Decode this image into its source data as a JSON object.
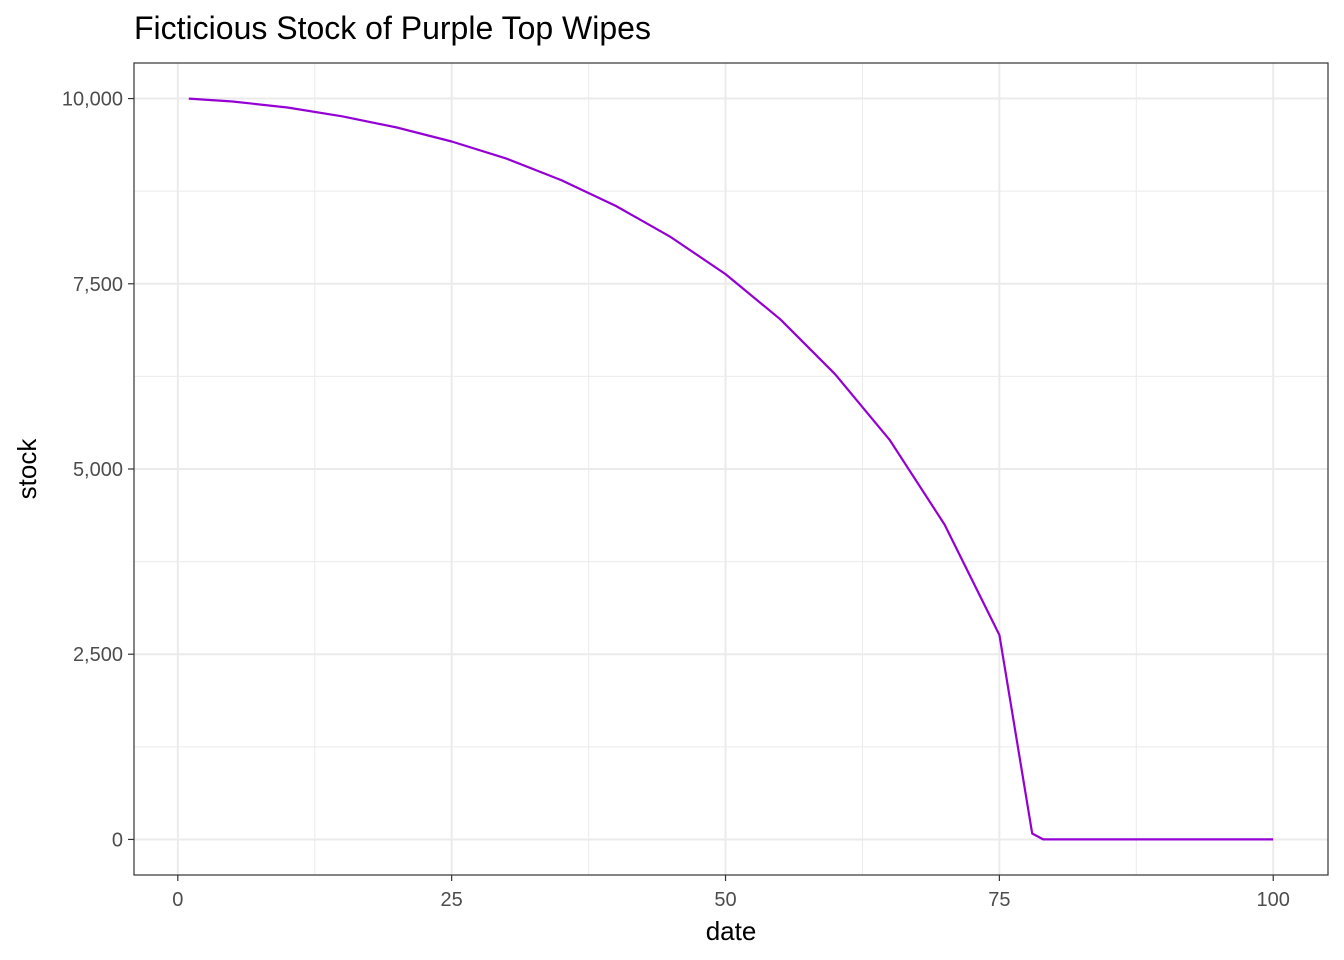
{
  "chart_data": {
    "type": "line",
    "title": "Ficticious Stock of Purple Top Wipes",
    "xlabel": "date",
    "ylabel": "stock",
    "xlim": [
      -4,
      105
    ],
    "ylim": [
      -480,
      10480
    ],
    "x_ticks": [
      0,
      25,
      50,
      75,
      100
    ],
    "x_tick_labels": [
      "0",
      "25",
      "50",
      "75",
      "100"
    ],
    "x_minor_ticks": [
      12.5,
      37.5,
      62.5,
      87.5
    ],
    "y_ticks": [
      0,
      2500,
      5000,
      7500,
      10000
    ],
    "y_tick_labels": [
      "0",
      "2,500",
      "5,000",
      "7,500",
      "10,000"
    ],
    "y_minor_ticks": [
      1250,
      3750,
      6250,
      8750
    ],
    "grid": true,
    "legend": "none",
    "series": [
      {
        "color": "#9400d3",
        "x": [
          1,
          5,
          10,
          15,
          20,
          25,
          30,
          35,
          40,
          45,
          50,
          55,
          60,
          65,
          70,
          75,
          78,
          79,
          85,
          90,
          95,
          100
        ],
        "y": [
          10000,
          9960,
          9880,
          9760,
          9610,
          9420,
          9190,
          8900,
          8550,
          8130,
          7630,
          7020,
          6280,
          5390,
          4250,
          2760,
          80,
          0,
          0,
          0,
          0,
          0
        ]
      }
    ]
  }
}
